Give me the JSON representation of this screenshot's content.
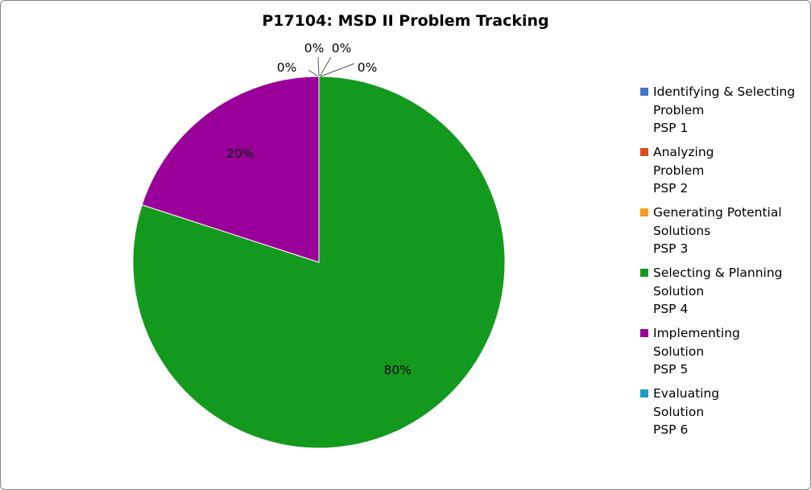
{
  "chart_data": {
    "type": "pie",
    "title": "P17104: MSD II Problem Tracking",
    "categories": [
      "Identifying & Selecting Problem PSP 1",
      "Analyzing Problem PSP 2",
      "Generating Potential Solutions PSP 3",
      "Selecting & Planning Solution PSP 4",
      "Implementing Solution PSP 5",
      "Evaluating Solution PSP 6"
    ],
    "values": [
      0,
      0,
      0,
      80,
      20,
      0
    ],
    "data_labels": [
      "0%",
      "0%",
      "0%",
      "80%",
      "20%",
      "0%"
    ],
    "colors": [
      "#4472C4",
      "#D84B1E",
      "#F79B1E",
      "#139A1E",
      "#990099",
      "#1A9CC5"
    ],
    "legend_placement": "right",
    "legend": [
      {
        "lines": [
          "Identifying & Selecting",
          "Problem",
          "PSP 1"
        ]
      },
      {
        "lines": [
          "Analyzing",
          "Problem",
          "PSP 2"
        ]
      },
      {
        "lines": [
          "Generating Potential",
          "Solutions",
          "PSP 3"
        ]
      },
      {
        "lines": [
          "Selecting & Planning",
          "Solution",
          "PSP 4"
        ]
      },
      {
        "lines": [
          "Implementing",
          "Solution",
          "PSP 5"
        ]
      },
      {
        "lines": [
          "Evaluating",
          "Solution",
          "PSP 6"
        ]
      }
    ]
  }
}
